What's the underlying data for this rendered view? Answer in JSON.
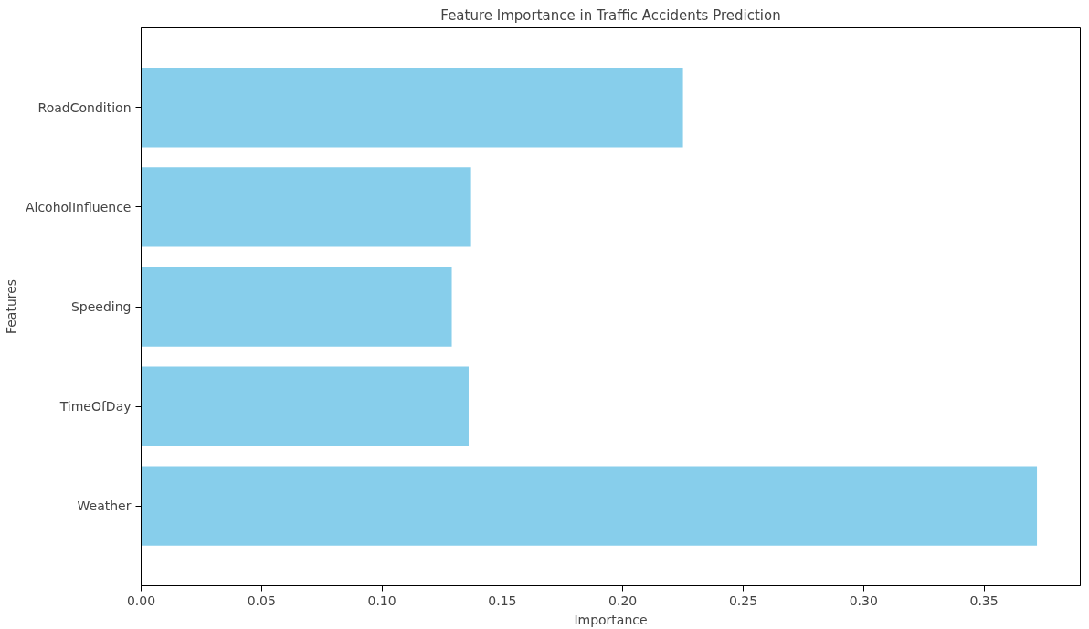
{
  "chart_data": {
    "type": "bar",
    "orientation": "horizontal",
    "title": "Feature Importance in Traffic Accidents Prediction",
    "xlabel": "Importance",
    "ylabel": "Features",
    "categories": [
      "RoadCondition",
      "AlcoholInfluence",
      "Speeding",
      "TimeOfDay",
      "Weather"
    ],
    "values": [
      0.225,
      0.137,
      0.129,
      0.136,
      0.372
    ],
    "color": "#87ceeb",
    "xlim": [
      0,
      0.39
    ],
    "xticks": [
      {
        "value": 0,
        "label": "0.00"
      },
      {
        "value": 0.05,
        "label": "0.05"
      },
      {
        "value": 0.1,
        "label": "0.10"
      },
      {
        "value": 0.15,
        "label": "0.15"
      },
      {
        "value": 0.2,
        "label": "0.20"
      },
      {
        "value": 0.25,
        "label": "0.25"
      },
      {
        "value": 0.3,
        "label": "0.30"
      },
      {
        "value": 0.35,
        "label": "0.35"
      }
    ],
    "grid": false
  }
}
